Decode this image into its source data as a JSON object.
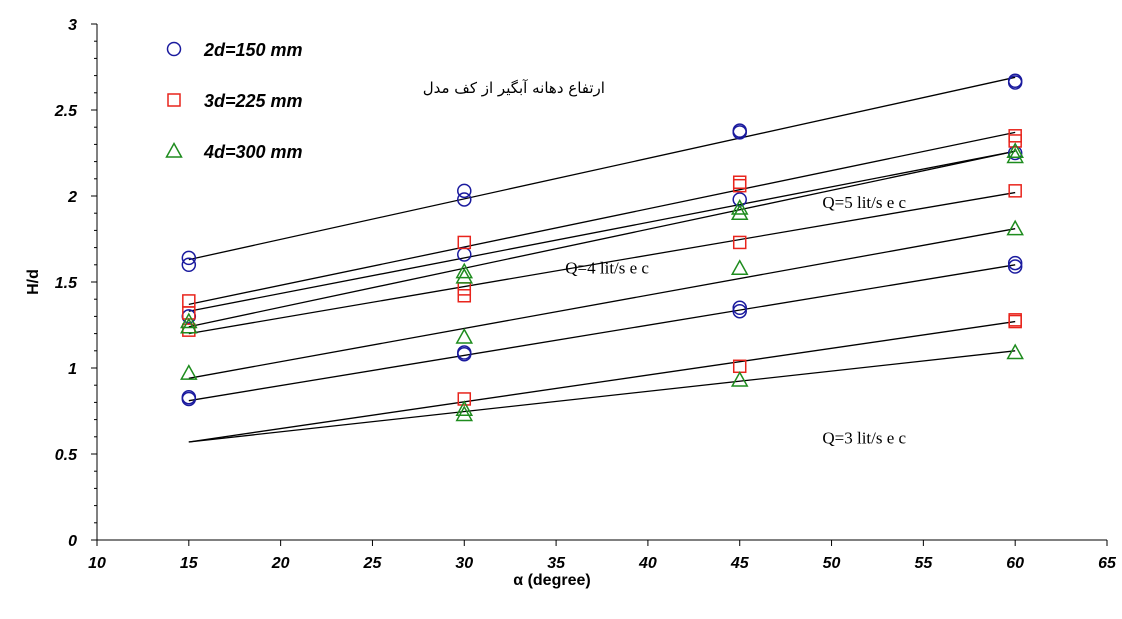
{
  "chart_data": {
    "type": "scatter",
    "xlabel": "α (degree)",
    "ylabel": "H/d",
    "xlim": [
      10,
      65
    ],
    "ylim": [
      0,
      3
    ],
    "x_ticks": [
      "10",
      "15",
      "20",
      "25",
      "30",
      "35",
      "40",
      "45",
      "50",
      "55",
      "60",
      "65"
    ],
    "y_ticks": [
      "0",
      "0.5",
      "1",
      "1.5",
      "2",
      "2.5",
      "3"
    ],
    "grid": false,
    "legend_position": "top-left",
    "colors": {
      "circle": "#1a1a9e",
      "square": "#e8241c",
      "triangle": "#1e8c1e",
      "line": "#000000"
    },
    "series": [
      {
        "name": "2d=150 mm",
        "marker": "circle",
        "x": [
          15,
          15,
          15,
          30,
          30,
          30,
          45,
          45,
          45,
          60,
          60,
          60,
          15,
          15,
          30,
          30,
          45,
          45,
          60,
          60
        ],
        "y": [
          1.64,
          1.6,
          1.3,
          2.03,
          1.98,
          1.66,
          2.38,
          2.37,
          1.98,
          2.67,
          2.66,
          2.25,
          0.83,
          0.82,
          1.09,
          1.08,
          1.35,
          1.33,
          1.61,
          1.59
        ]
      },
      {
        "name": "3d=225 mm",
        "marker": "square",
        "x": [
          15,
          15,
          15,
          30,
          30,
          30,
          45,
          45,
          45,
          60,
          60,
          60,
          30,
          45,
          60,
          60
        ],
        "y": [
          1.39,
          1.32,
          1.22,
          1.73,
          1.46,
          1.42,
          2.08,
          2.06,
          1.73,
          2.35,
          2.32,
          2.03,
          0.82,
          1.01,
          1.28,
          1.27
        ]
      },
      {
        "name": "4d=300 mm",
        "marker": "triangle",
        "x": [
          15,
          15,
          15,
          30,
          30,
          30,
          45,
          45,
          45,
          60,
          60,
          60,
          30,
          30,
          45,
          60
        ],
        "y": [
          1.27,
          1.24,
          0.97,
          1.56,
          1.53,
          1.18,
          1.93,
          1.9,
          1.58,
          2.26,
          2.23,
          1.81,
          0.76,
          0.73,
          0.93,
          1.09
        ]
      }
    ],
    "fit_lines": [
      {
        "x": [
          15,
          60
        ],
        "y": [
          1.63,
          2.69
        ]
      },
      {
        "x": [
          15,
          60
        ],
        "y": [
          1.37,
          2.37
        ]
      },
      {
        "x": [
          15,
          60
        ],
        "y": [
          1.33,
          2.26
        ]
      },
      {
        "x": [
          15,
          60
        ],
        "y": [
          1.24,
          2.26
        ]
      },
      {
        "x": [
          15,
          60
        ],
        "y": [
          1.2,
          2.02
        ]
      },
      {
        "x": [
          15,
          60
        ],
        "y": [
          0.94,
          1.81
        ]
      },
      {
        "x": [
          15,
          60
        ],
        "y": [
          0.81,
          1.6
        ]
      },
      {
        "x": [
          15,
          60
        ],
        "y": [
          0.57,
          1.27
        ]
      },
      {
        "x": [
          15,
          60
        ],
        "y": [
          0.57,
          1.1
        ]
      }
    ],
    "annotations": [
      {
        "text": "ارتفاع دهانه آبگیر از کف مدل",
        "x": 32.7,
        "y": 2.6,
        "style": "fa"
      },
      {
        "text": "Q=5 lit/s e c",
        "x": 49.5,
        "y": 1.93,
        "style": "q"
      },
      {
        "text": "Q=4 lit/s e c",
        "x": 35.5,
        "y": 1.55,
        "style": "q"
      },
      {
        "text": "Q=3 lit/s e c",
        "x": 49.5,
        "y": 0.56,
        "style": "q"
      }
    ]
  }
}
